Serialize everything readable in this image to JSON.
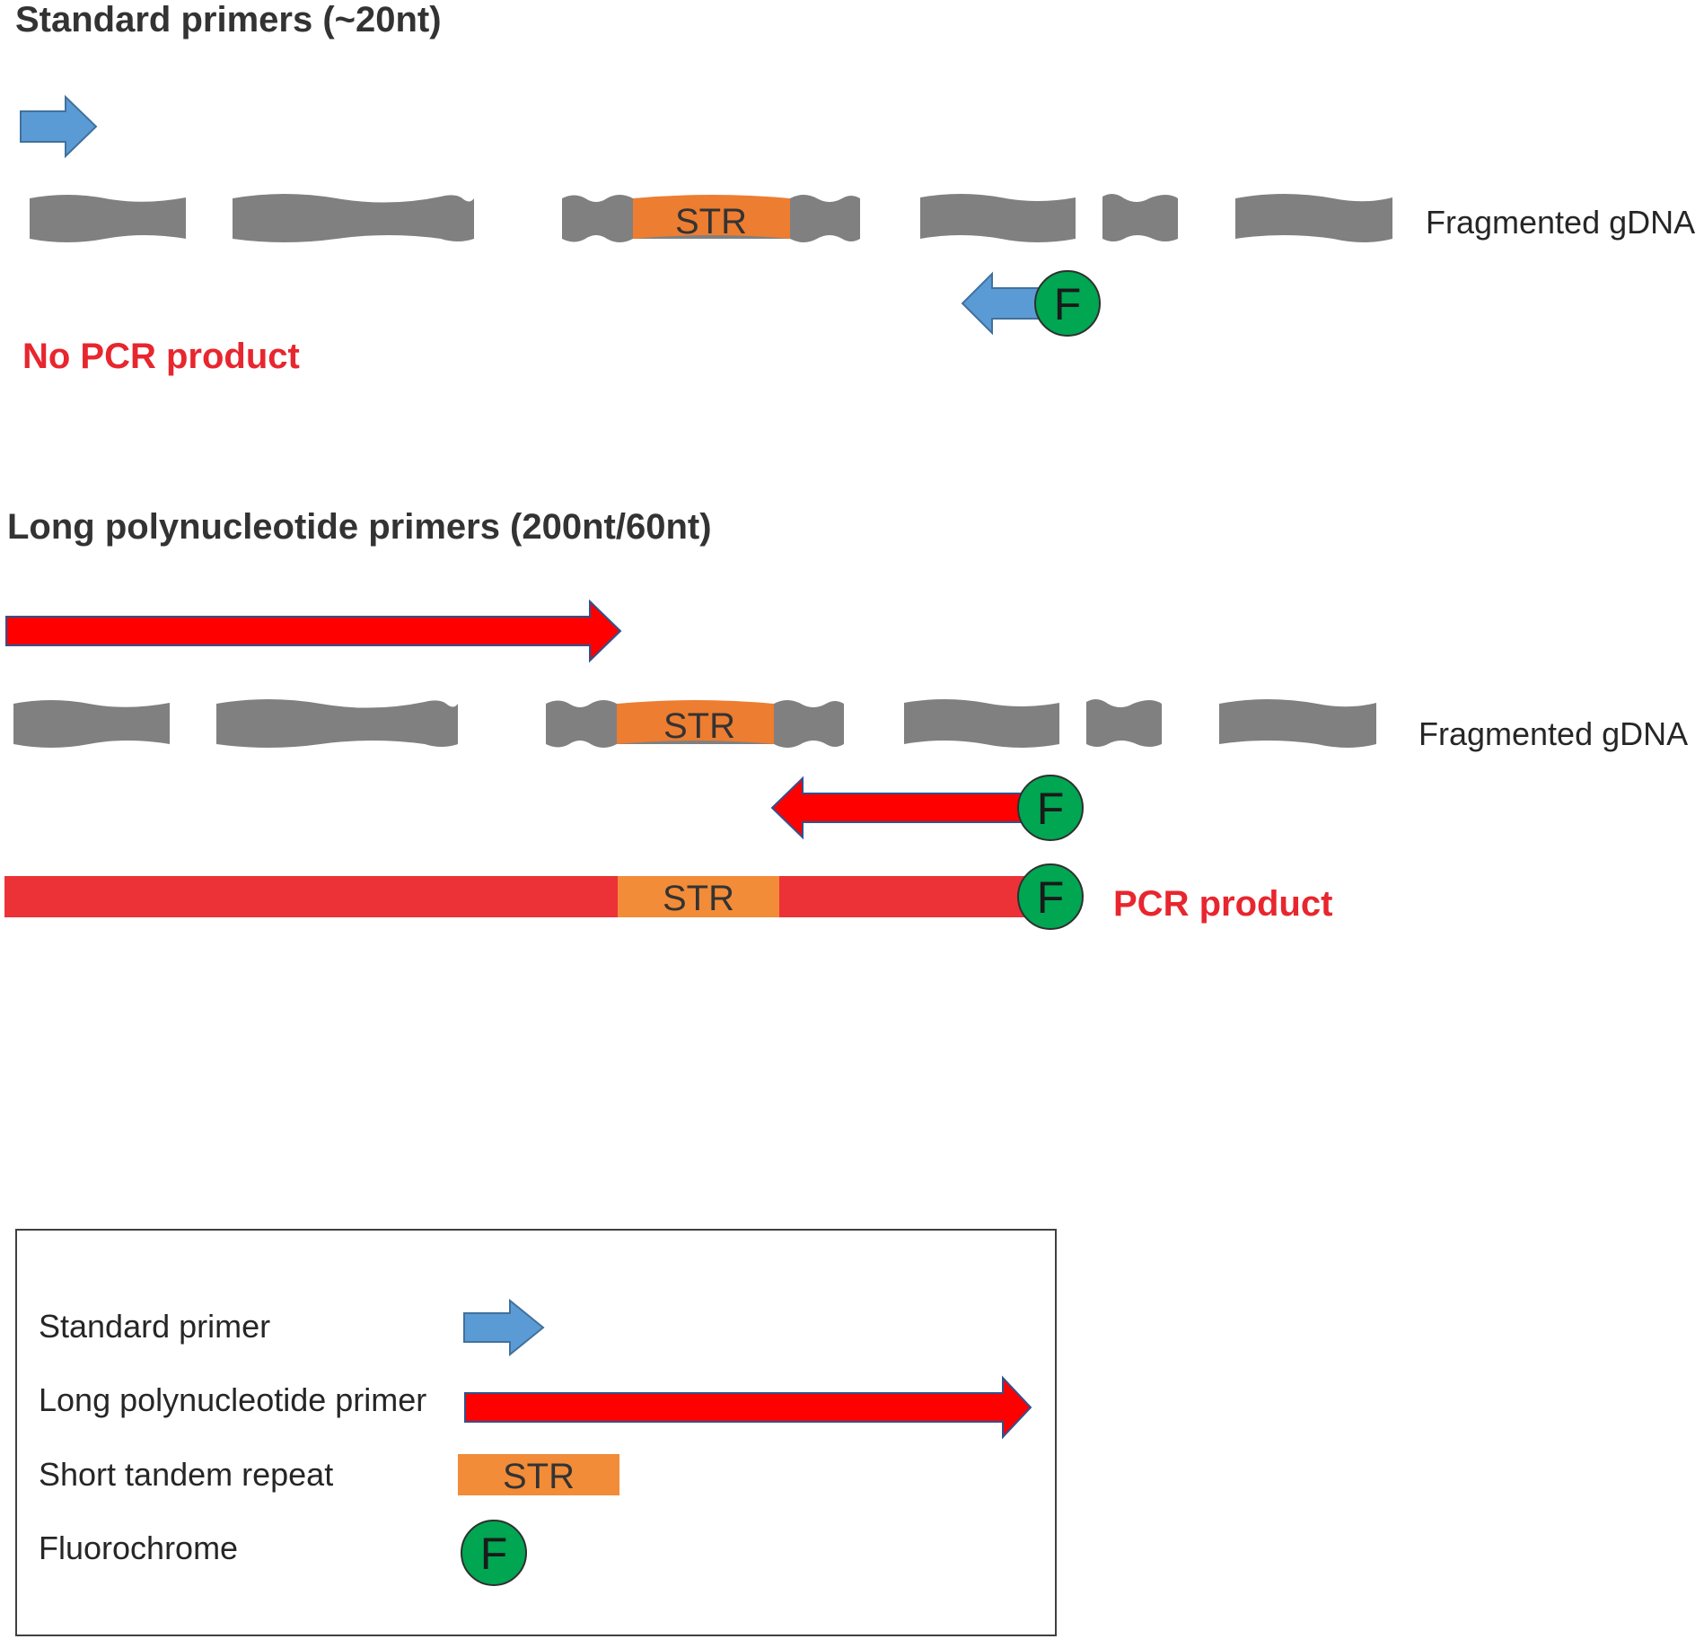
{
  "section1": {
    "title": "Standard primers (~20nt)",
    "gdna_label": "Fragmented gDNA",
    "str_label": "STR",
    "fluor_label": "F",
    "result": "No PCR product"
  },
  "section2": {
    "title": "Long polynucleotide primers (200nt/60nt)",
    "gdna_label": "Fragmented gDNA",
    "str_label": "STR",
    "fluor_label": "F",
    "product_str_label": "STR",
    "product_fluor_label": "F",
    "result": "PCR product"
  },
  "legend": {
    "items": [
      {
        "label": "Standard primer",
        "symbol": "blue-arrow"
      },
      {
        "label": "Long polynucleotide primer",
        "symbol": "red-arrow"
      },
      {
        "label": "Short tandem repeat",
        "symbol": "str-box",
        "symbol_text": "STR"
      },
      {
        "label": "Fluorochrome",
        "symbol": "fluor-circle",
        "symbol_text": "F"
      }
    ]
  },
  "colors": {
    "standard_primer": "#5b9bd5",
    "standard_primer_stroke": "#41719c",
    "long_primer": "#ff0000",
    "long_primer_stroke": "#2f528f",
    "gdna": "#808080",
    "str": "#ed7d31",
    "str_legend": "#f28c38",
    "fluorochrome": "#00a651",
    "product": "#ec3237",
    "text_dark": "#333333",
    "text_red": "#e8262e"
  }
}
